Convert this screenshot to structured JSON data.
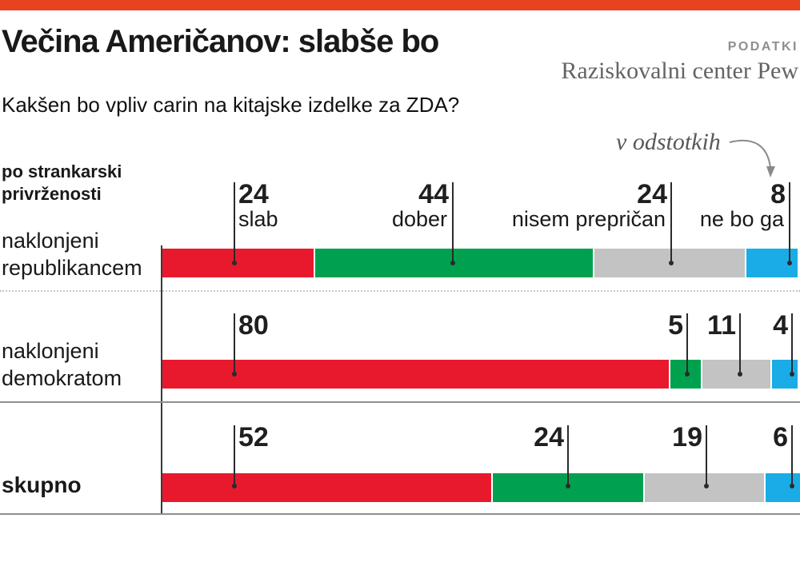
{
  "header": {
    "title": "Večina Američanov: slabše bo",
    "kicker": "PODATKI",
    "source": "Raziskovalni center Pew",
    "subtitle": "Kakšen bo vpliv carin na kitajske izdelke za ZDA?",
    "unit_note": "v odstotkih"
  },
  "group_label": "po strankarski\nprivrženosti",
  "accent_bar_color": "#e8421f",
  "chart_data": {
    "type": "bar",
    "subtype": "horizontal-stacked",
    "unit": "percent",
    "xlim": [
      0,
      100
    ],
    "categories": [
      "slab",
      "dober",
      "nisem prepričan",
      "ne bo ga"
    ],
    "colors": [
      "#e8192d",
      "#00a14e",
      "#c3c3c3",
      "#19ace6"
    ],
    "rows": [
      {
        "label": "naklonjeni\nrepublikancem",
        "bold": false,
        "values": [
          24,
          44,
          24,
          8
        ]
      },
      {
        "label": "naklonjeni\ndemokratom",
        "bold": false,
        "values": [
          80,
          5,
          11,
          4
        ]
      },
      {
        "label": "skupno",
        "bold": true,
        "values": [
          52,
          24,
          19,
          6
        ]
      }
    ]
  }
}
